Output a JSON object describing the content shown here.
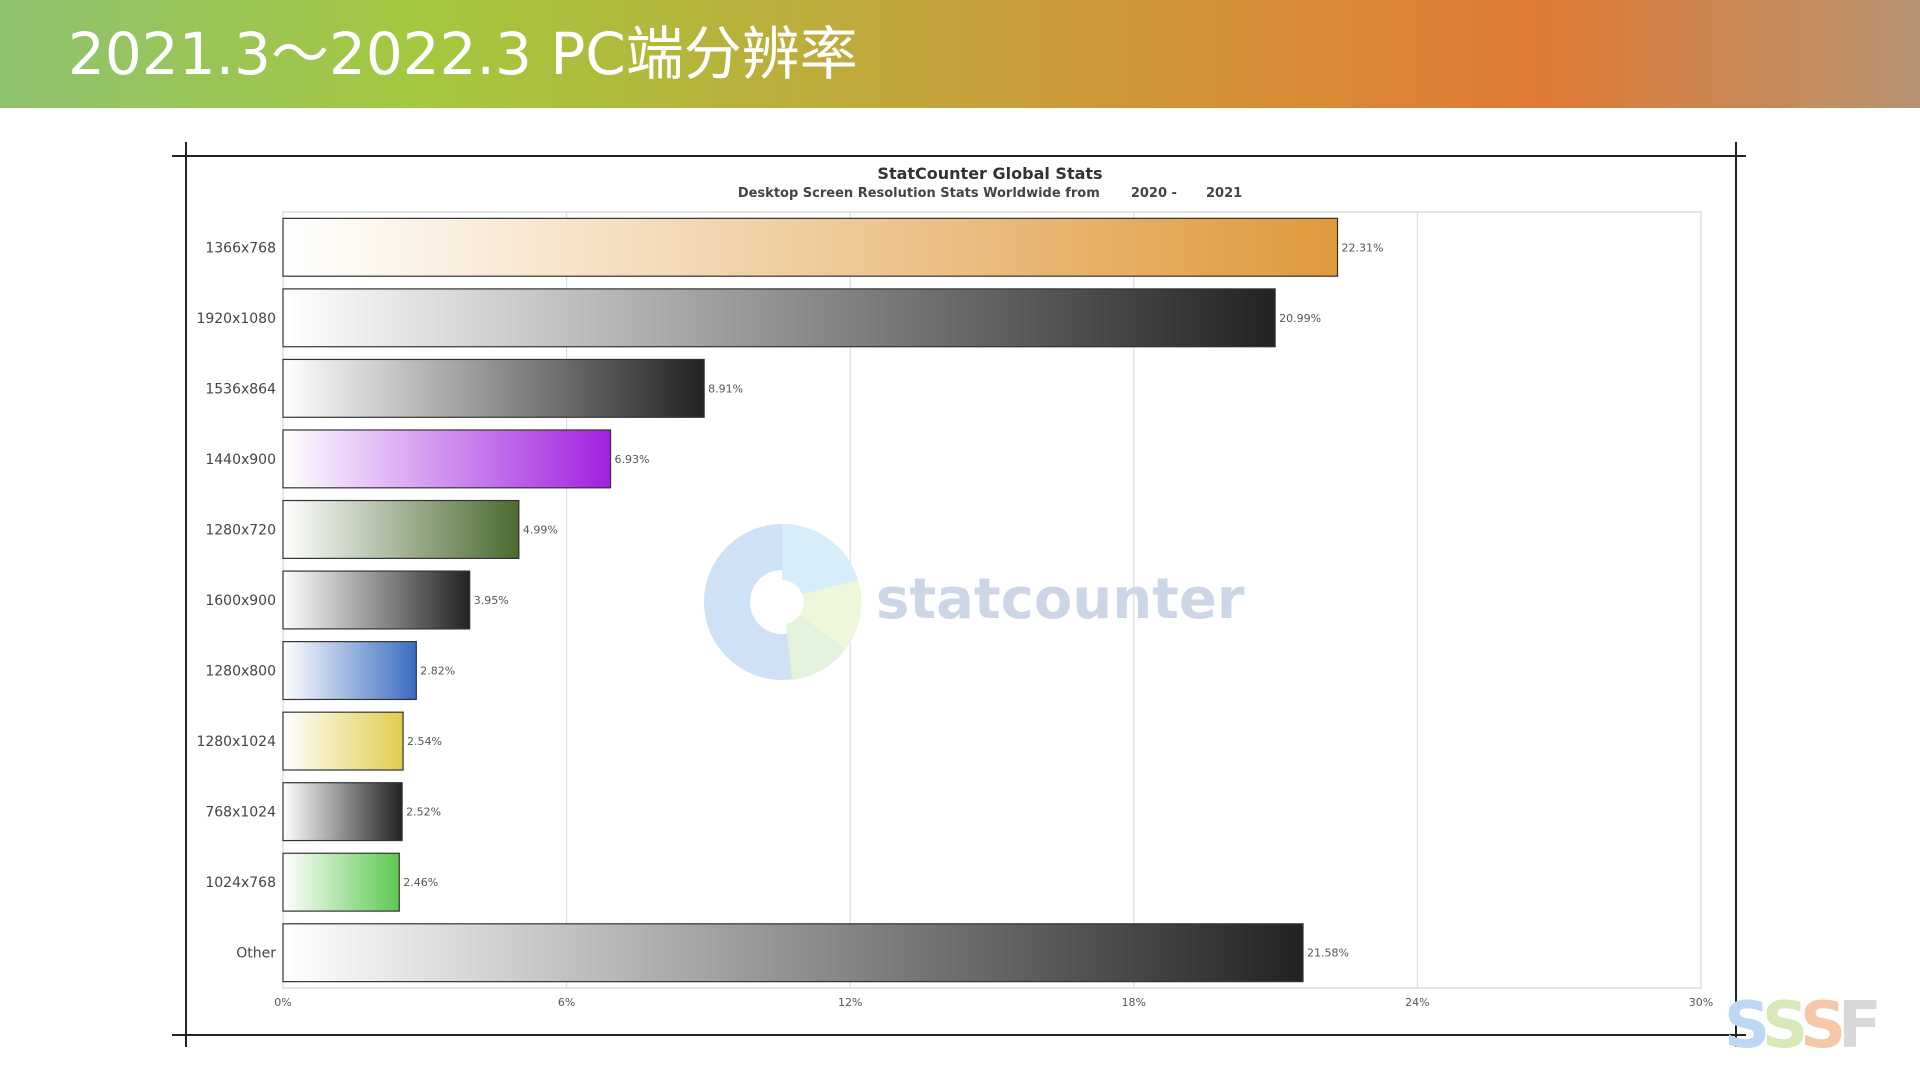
{
  "slide": {
    "title": "2021.3～2022.3 PC端分辨率"
  },
  "chart_data": {
    "type": "bar",
    "orientation": "horizontal",
    "title": "StatCounter Global Stats",
    "subtitle_prefix": "Desktop Screen Resolution Stats Worldwide from",
    "subtitle_from": "2020 -",
    "subtitle_to": "2021",
    "watermark": "statcounter",
    "categories": [
      "1366x768",
      "1920x1080",
      "1536x864",
      "1440x900",
      "1280x720",
      "1600x900",
      "1280x800",
      "1280x1024",
      "768x1024",
      "1024x768",
      "Other"
    ],
    "values": [
      22.31,
      20.99,
      8.91,
      6.93,
      4.99,
      3.95,
      2.82,
      2.54,
      2.52,
      2.46,
      21.58
    ],
    "value_labels": [
      "22.31%",
      "20.99%",
      "8.91%",
      "6.93%",
      "4.99%",
      "3.95%",
      "2.82%",
      "2.54%",
      "2.52%",
      "2.46%",
      "21.58%"
    ],
    "bar_colors": [
      "#e0993a",
      "#222222",
      "#222222",
      "#a020e0",
      "#4a6a30",
      "#222222",
      "#3a6cc0",
      "#e0cc50",
      "#222222",
      "#5cc850",
      "#222222"
    ],
    "xlim": [
      0,
      30
    ],
    "xticks": [
      "0%",
      "6%",
      "12%",
      "18%",
      "24%",
      "30%"
    ],
    "grid": true,
    "legend": "none"
  }
}
